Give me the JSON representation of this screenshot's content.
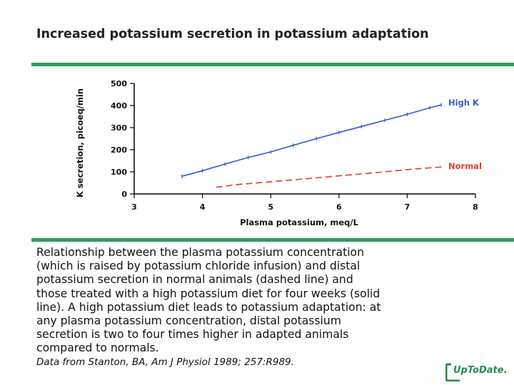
{
  "title": "Increased potassium secretion in potassium adaptation",
  "colors": {
    "rule": "#2e9b57",
    "high_k": "#2f5bd3",
    "normal": "#e23b2e",
    "logo": "#2b8a4e"
  },
  "chart_data": {
    "type": "line",
    "xlabel": "Plasma potassium, meq/L",
    "ylabel": "K secretion, picoeq/min",
    "xlim": [
      3,
      8
    ],
    "ylim": [
      0,
      500
    ],
    "x_ticks": [
      3,
      4,
      5,
      6,
      7,
      8
    ],
    "y_ticks": [
      0,
      100,
      200,
      300,
      400,
      500
    ],
    "grid": false,
    "series": [
      {
        "name": "High K",
        "style": "solid",
        "color": "#2f5bd3",
        "x": [
          3.7,
          4.0,
          4.33,
          4.67,
          5.0,
          5.33,
          5.67,
          6.0,
          6.33,
          6.67,
          7.0,
          7.33,
          7.5
        ],
        "y": [
          80,
          105,
          135,
          165,
          190,
          220,
          250,
          278,
          305,
          333,
          360,
          390,
          403
        ]
      },
      {
        "name": "Normal",
        "style": "dashed",
        "color": "#e23b2e",
        "x": [
          4.2,
          4.5,
          5.0,
          5.5,
          6.0,
          6.5,
          7.0,
          7.5
        ],
        "y": [
          30,
          42,
          55,
          68,
          82,
          95,
          110,
          122
        ]
      }
    ]
  },
  "caption": "Relationship between the plasma potassium concentration\n(which is raised by potassium chloride infusion) and distal\npotassium secretion in normal animals (dashed line) and\nthose treated with a high potassium diet for four weeks (solid\nline). A high potassium diet leads to potassium adaptation: at\nany plasma potassium concentration, distal potassium\nsecretion is two to four times higher in adapted animals\ncompared to normals.",
  "source": "Data from Stanton, BA, Am J Physiol 1989; 257:R989.",
  "logo_text": "UpToDate."
}
